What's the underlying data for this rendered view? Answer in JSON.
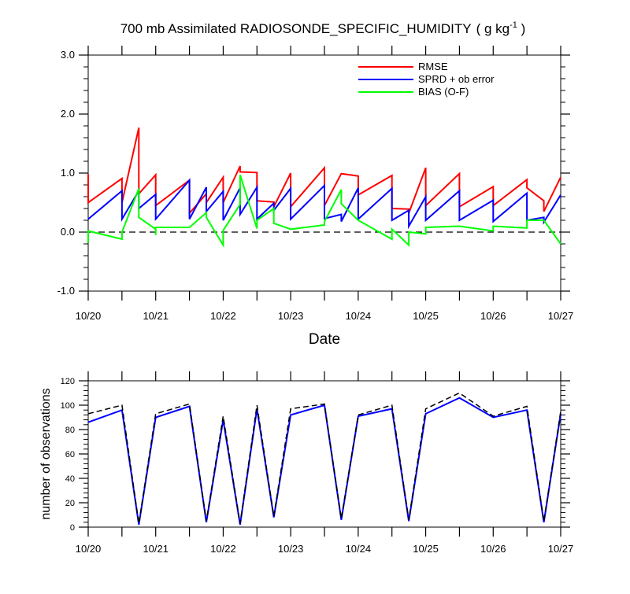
{
  "chart_data": [
    {
      "type": "line",
      "title": "700 mb Assimilated RADIOSONDE_SPECIFIC_HUMIDITY",
      "title_units": "( g kg",
      "title_units_sup": "-1",
      "title_units_close": " )",
      "xlabel": "Date",
      "ylabel": "",
      "xlim": [
        0,
        7
      ],
      "ylim": [
        -1.0,
        3.0
      ],
      "xticks": [
        0,
        1,
        2,
        3,
        4,
        5,
        6,
        7
      ],
      "xtick_labels": [
        "10/20",
        "10/21",
        "10/22",
        "10/23",
        "10/24",
        "10/25",
        "10/26",
        "10/27"
      ],
      "yticks": [
        -1.0,
        0.0,
        1.0,
        2.0,
        3.0
      ],
      "ytick_labels": [
        "-1.0",
        "0.0",
        "1.0",
        "2.0",
        "3.0"
      ],
      "legend": [
        "RMSE",
        "SPRD + ob error",
        "BIAS (O-F)"
      ],
      "legend_position": "top-right",
      "zero_line": true,
      "series": [
        {
          "name": "RMSE",
          "color": "#ff0000",
          "segments": [
            [
              [
                0,
                0.98
              ],
              [
                0,
                0.5
              ],
              [
                0.5,
                0.91
              ],
              [
                0.5,
                0.5
              ],
              [
                0.75,
                1.77
              ],
              [
                0.75,
                0.65
              ],
              [
                1,
                0.97
              ],
              [
                1,
                0.45
              ],
              [
                1.5,
                0.88
              ],
              [
                1.5,
                0.32
              ],
              [
                1.75,
                0.65
              ],
              [
                1.75,
                0.5
              ],
              [
                2,
                0.93
              ],
              [
                2,
                0.5
              ],
              [
                2.25,
                1.12
              ],
              [
                2.25,
                1.02
              ],
              [
                2.5,
                1.01
              ],
              [
                2.5,
                0.53
              ],
              [
                2.75,
                0.51
              ],
              [
                2.75,
                0.43
              ],
              [
                3,
                1.0
              ],
              [
                3,
                0.43
              ],
              [
                3.5,
                1.09
              ],
              [
                3.5,
                0.45
              ],
              [
                3.75,
                0.99
              ],
              [
                4,
                0.95
              ],
              [
                4,
                0.63
              ],
              [
                4.5,
                0.96
              ],
              [
                4.5,
                0.4
              ],
              [
                4.75,
                0.39
              ],
              [
                4.75,
                0.32
              ],
              [
                5,
                1.09
              ],
              [
                5,
                0.45
              ],
              [
                5.5,
                0.99
              ],
              [
                5.5,
                0.43
              ],
              [
                6,
                0.77
              ],
              [
                6,
                0.45
              ],
              [
                6.5,
                0.89
              ],
              [
                6.5,
                0.75
              ],
              [
                6.75,
                0.53
              ],
              [
                6.75,
                0.35
              ],
              [
                7,
                0.93
              ]
            ]
          ]
        },
        {
          "name": "SPRD + ob error",
          "color": "#0000ff",
          "segments": [
            [
              [
                0,
                0.22
              ],
              [
                0.5,
                0.7
              ],
              [
                0.5,
                0.22
              ],
              [
                0.75,
                0.7
              ],
              [
                0.75,
                0.4
              ],
              [
                1,
                0.64
              ],
              [
                1,
                0.22
              ],
              [
                1.5,
                0.88
              ],
              [
                1.5,
                0.22
              ],
              [
                1.75,
                0.76
              ],
              [
                1.75,
                0.35
              ],
              [
                2,
                0.69
              ],
              [
                2,
                0.2
              ],
              [
                2.25,
                0.75
              ],
              [
                2.25,
                0.3
              ],
              [
                2.5,
                0.76
              ],
              [
                2.5,
                0.22
              ],
              [
                2.75,
                0.49
              ],
              [
                2.75,
                0.37
              ],
              [
                3,
                0.74
              ],
              [
                3,
                0.22
              ],
              [
                3.5,
                0.79
              ],
              [
                3.5,
                0.23
              ],
              [
                3.75,
                0.3
              ],
              [
                3.75,
                0.18
              ],
              [
                4,
                0.75
              ],
              [
                4,
                0.22
              ],
              [
                4.5,
                0.74
              ],
              [
                4.5,
                0.2
              ],
              [
                4.75,
                0.37
              ],
              [
                4.75,
                0.1
              ],
              [
                5,
                0.6
              ],
              [
                5,
                0.2
              ],
              [
                5.5,
                0.7
              ],
              [
                5.5,
                0.2
              ],
              [
                6,
                0.54
              ],
              [
                6,
                0.18
              ],
              [
                6.5,
                0.66
              ],
              [
                6.5,
                0.2
              ],
              [
                6.75,
                0.25
              ],
              [
                6.75,
                0.17
              ],
              [
                7,
                0.63
              ]
            ]
          ]
        },
        {
          "name": "BIAS (O-F)",
          "color": "#00ff00",
          "segments": [
            [
              [
                0,
                -0.18
              ],
              [
                0,
                0.02
              ],
              [
                0.5,
                -0.12
              ],
              [
                0.5,
                0.0
              ],
              [
                0.75,
                0.74
              ],
              [
                0.75,
                0.25
              ],
              [
                1,
                0.05
              ],
              [
                1,
                -0.05
              ],
              [
                1,
                0.08
              ],
              [
                1.5,
                0.08
              ],
              [
                1.75,
                0.33
              ],
              [
                1.75,
                0.25
              ],
              [
                2,
                -0.22
              ],
              [
                2,
                0.03
              ],
              [
                2.25,
                0.47
              ],
              [
                2.25,
                0.97
              ],
              [
                2.5,
                0.06
              ],
              [
                2.5,
                0.2
              ],
              [
                2.75,
                0.4
              ],
              [
                2.75,
                0.15
              ],
              [
                3,
                0.05
              ],
              [
                3.5,
                0.12
              ],
              [
                3.5,
                0.18
              ],
              [
                3.75,
                0.72
              ],
              [
                3.75,
                0.48
              ],
              [
                4,
                0.2
              ],
              [
                4.5,
                -0.12
              ],
              [
                4.5,
                0.05
              ],
              [
                4.75,
                -0.22
              ],
              [
                4.75,
                0.0
              ],
              [
                5,
                -0.03
              ],
              [
                5,
                0.08
              ],
              [
                5.5,
                0.1
              ],
              [
                6,
                0.02
              ],
              [
                6,
                0.1
              ],
              [
                6.5,
                0.07
              ],
              [
                6.5,
                0.2
              ],
              [
                6.75,
                0.2
              ],
              [
                7,
                -0.2
              ]
            ]
          ]
        }
      ]
    },
    {
      "type": "line",
      "title": "",
      "xlabel": "",
      "ylabel": "number of observations",
      "xlim": [
        0,
        7
      ],
      "ylim": [
        0,
        120
      ],
      "xticks": [
        0,
        1,
        2,
        3,
        4,
        5,
        6,
        7
      ],
      "xtick_labels": [
        "10/20",
        "10/21",
        "10/22",
        "10/23",
        "10/24",
        "10/25",
        "10/26",
        "10/27"
      ],
      "yticks": [
        0,
        20,
        40,
        60,
        80,
        100,
        120
      ],
      "ytick_labels": [
        "0",
        "20",
        "40",
        "60",
        "80",
        "100",
        "120"
      ],
      "series": [
        {
          "name": "obs (dashed)",
          "color": "#000000",
          "style": "dashed",
          "x": [
            0,
            0.5,
            0.75,
            1,
            1.5,
            1.75,
            2,
            2.25,
            2.5,
            2.75,
            3,
            3.5,
            3.75,
            4,
            4.5,
            4.75,
            5,
            5.5,
            6,
            6.5,
            6.75,
            7
          ],
          "values": [
            93,
            100,
            3,
            93,
            101,
            5,
            91,
            3,
            100,
            9,
            97,
            101,
            7,
            92,
            100,
            6,
            97,
            110,
            91,
            99,
            5,
            95
          ]
        },
        {
          "name": "obs (solid)",
          "color": "#0000ff",
          "style": "solid",
          "x": [
            0,
            0.5,
            0.75,
            1,
            1.5,
            1.75,
            2,
            2.25,
            2.5,
            2.75,
            3,
            3.5,
            3.75,
            4,
            4.5,
            4.75,
            5,
            5.5,
            6,
            6.5,
            6.75,
            7
          ],
          "values": [
            86,
            96,
            2,
            90,
            99,
            4,
            88,
            2,
            97,
            8,
            92,
            100,
            6,
            91,
            97,
            5,
            93,
            106,
            90,
            96,
            4,
            93
          ]
        }
      ]
    }
  ]
}
